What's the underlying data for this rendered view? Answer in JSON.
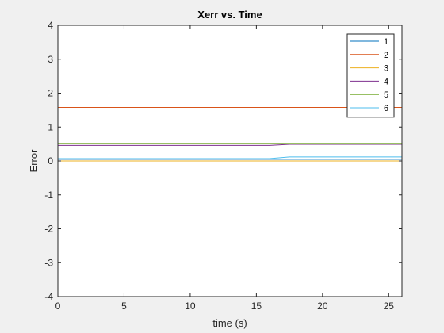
{
  "chart_data": {
    "type": "line",
    "title": "Xerr vs. Time",
    "xlabel": "time (s)",
    "ylabel": "Error",
    "xlim": [
      0,
      26
    ],
    "ylim": [
      -4,
      4
    ],
    "xticks": [
      0,
      5,
      10,
      15,
      20,
      25
    ],
    "yticks": [
      -4,
      -3,
      -2,
      -1,
      0,
      1,
      2,
      3,
      4
    ],
    "grid": false,
    "legend_position": "top-right",
    "series": [
      {
        "name": "1",
        "color": "#0072bd",
        "x": [
          0,
          26
        ],
        "y": [
          0.05,
          0.05
        ]
      },
      {
        "name": "2",
        "color": "#d95319",
        "x": [
          0,
          26
        ],
        "y": [
          1.58,
          1.58
        ]
      },
      {
        "name": "3",
        "color": "#edb120",
        "x": [
          0,
          26
        ],
        "y": [
          0.0,
          0.0
        ]
      },
      {
        "name": "4",
        "color": "#7e2f8e",
        "x": [
          0,
          16,
          17.5,
          26
        ],
        "y": [
          0.46,
          0.46,
          0.49,
          0.49
        ]
      },
      {
        "name": "5",
        "color": "#77ac30",
        "x": [
          0,
          26
        ],
        "y": [
          0.52,
          0.52
        ]
      },
      {
        "name": "6",
        "color": "#4dbeee",
        "x": [
          0,
          16,
          17.5,
          26
        ],
        "y": [
          0.07,
          0.07,
          0.12,
          0.12
        ]
      }
    ]
  }
}
